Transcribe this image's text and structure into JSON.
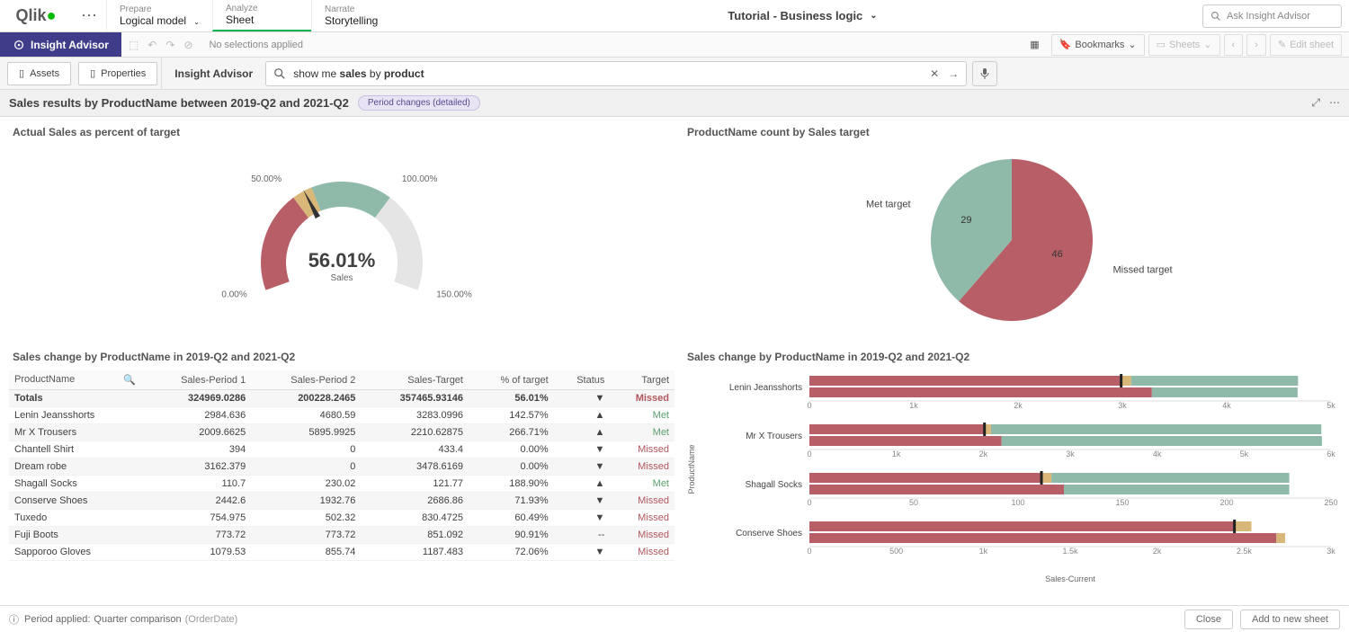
{
  "logo_text": "Qlik",
  "top_tabs": [
    {
      "sub": "Prepare",
      "main": "Logical model",
      "caret": true
    },
    {
      "sub": "Analyze",
      "main": "Sheet",
      "active": true
    },
    {
      "sub": "Narrate",
      "main": "Storytelling"
    }
  ],
  "app_title": "Tutorial - Business logic",
  "search_placeholder": "Ask Insight Advisor",
  "insight_label": "Insight Advisor",
  "no_selections": "No selections applied",
  "bookmarks_label": "Bookmarks",
  "sheets_label": "Sheets",
  "edit_sheet_label": "Edit sheet",
  "assets_label": "Assets",
  "properties_label": "Properties",
  "ia_tab_label": "Insight Advisor",
  "query_pre": "show me ",
  "query_b1": "sales",
  "query_mid": " by ",
  "query_b2": "product",
  "result_title": "Sales results by ProductName between 2019-Q2 and 2021-Q2",
  "badge_text": "Period changes (detailed)",
  "gauge": {
    "title": "Actual Sales as percent of target",
    "value_text": "56.01%",
    "value_pct": 56.01,
    "sub_label": "Sales",
    "ticks": [
      "0.00%",
      "50.00%",
      "100.00%",
      "150.00%"
    ],
    "colors": {
      "red": "#b75e67",
      "tan": "#d9b778",
      "green": "#8fb9a8",
      "needle": "#333333",
      "track": "#e5e5e5"
    }
  },
  "pie": {
    "title": "ProductName count by Sales target",
    "slices": [
      {
        "label": "Missed target",
        "value": 46,
        "color": "#b75e67"
      },
      {
        "label": "Met target",
        "value": 29,
        "color": "#8fb9a8"
      }
    ]
  },
  "table": {
    "title": "Sales change by ProductName in 2019-Q2 and 2021-Q2",
    "columns": [
      "ProductName",
      "Sales-Period 1",
      "Sales-Period 2",
      "Sales-Target",
      "% of target",
      "Status",
      "Target"
    ],
    "totals_label": "Totals",
    "totals": [
      "324969.0286",
      "200228.2465",
      "357465.93146",
      "56.01%",
      "▼",
      "Missed"
    ],
    "rows": [
      {
        "name": "Lenin Jeansshorts",
        "p1": "2984.636",
        "p2": "4680.59",
        "tgt": "3283.0996",
        "pct": "142.57%",
        "arrow": "▲",
        "status": "Met"
      },
      {
        "name": "Mr X Trousers",
        "p1": "2009.6625",
        "p2": "5895.9925",
        "tgt": "2210.62875",
        "pct": "266.71%",
        "arrow": "▲",
        "status": "Met"
      },
      {
        "name": "Chantell Shirt",
        "p1": "394",
        "p2": "0",
        "tgt": "433.4",
        "pct": "0.00%",
        "arrow": "▼",
        "status": "Missed"
      },
      {
        "name": "Dream robe",
        "p1": "3162.379",
        "p2": "0",
        "tgt": "3478.6169",
        "pct": "0.00%",
        "arrow": "▼",
        "status": "Missed"
      },
      {
        "name": "Shagall Socks",
        "p1": "110.7",
        "p2": "230.02",
        "tgt": "121.77",
        "pct": "188.90%",
        "arrow": "▲",
        "status": "Met"
      },
      {
        "name": "Conserve Shoes",
        "p1": "2442.6",
        "p2": "1932.76",
        "tgt": "2686.86",
        "pct": "71.93%",
        "arrow": "▼",
        "status": "Missed"
      },
      {
        "name": "Tuxedo",
        "p1": "754.975",
        "p2": "502.32",
        "tgt": "830.4725",
        "pct": "60.49%",
        "arrow": "▼",
        "status": "Missed"
      },
      {
        "name": "Fuji Boots",
        "p1": "773.72",
        "p2": "773.72",
        "tgt": "851.092",
        "pct": "90.91%",
        "arrow": "--",
        "status": "Missed"
      },
      {
        "name": "Sapporoo Gloves",
        "p1": "1079.53",
        "p2": "855.74",
        "tgt": "1187.483",
        "pct": "72.06%",
        "arrow": "▼",
        "status": "Missed"
      }
    ]
  },
  "bars": {
    "title": "Sales change by ProductName in 2019-Q2 and 2021-Q2",
    "y_label": "ProductName",
    "x_label": "Sales-Current",
    "colors": {
      "red": "#b75e67",
      "tan": "#d9b778",
      "green": "#8fb9a8",
      "mark": "#222"
    },
    "groups": [
      {
        "name": "Lenin Jeansshorts",
        "top": {
          "red": 2984,
          "tan": 100,
          "green": 1600,
          "mark": 2984,
          "max": 5000
        },
        "bot": {
          "red": 3283,
          "green": 1397,
          "max": 5000
        },
        "ticks": [
          "0",
          "1k",
          "2k",
          "3k",
          "4k",
          "5k"
        ]
      },
      {
        "name": "Mr X Trousers",
        "top": {
          "red": 2009,
          "tan": 80,
          "green": 3800,
          "mark": 2009,
          "max": 6000
        },
        "bot": {
          "red": 2210,
          "green": 3685,
          "max": 6000
        },
        "ticks": [
          "0",
          "1k",
          "2k",
          "3k",
          "4k",
          "5k",
          "6k"
        ]
      },
      {
        "name": "Shagall Socks",
        "top": {
          "red": 111,
          "tan": 5,
          "green": 114,
          "mark": 111,
          "max": 250
        },
        "bot": {
          "red": 122,
          "green": 108,
          "max": 250
        },
        "ticks": [
          "0",
          "50",
          "100",
          "150",
          "200",
          "250"
        ]
      },
      {
        "name": "Conserve Shoes",
        "top": {
          "red": 2442,
          "tan": 100,
          "green": 0,
          "mark": 2442,
          "max": 3000
        },
        "bot": {
          "red": 2686,
          "green": 0,
          "tan": 50,
          "max": 3000
        },
        "ticks": [
          "0",
          "500",
          "1k",
          "1.5k",
          "2k",
          "2.5k",
          "3k"
        ]
      }
    ]
  },
  "footer": {
    "period_label": "Period applied:",
    "period_value": "Quarter comparison",
    "period_extra": "(OrderDate)",
    "close": "Close",
    "add": "Add to new sheet"
  }
}
